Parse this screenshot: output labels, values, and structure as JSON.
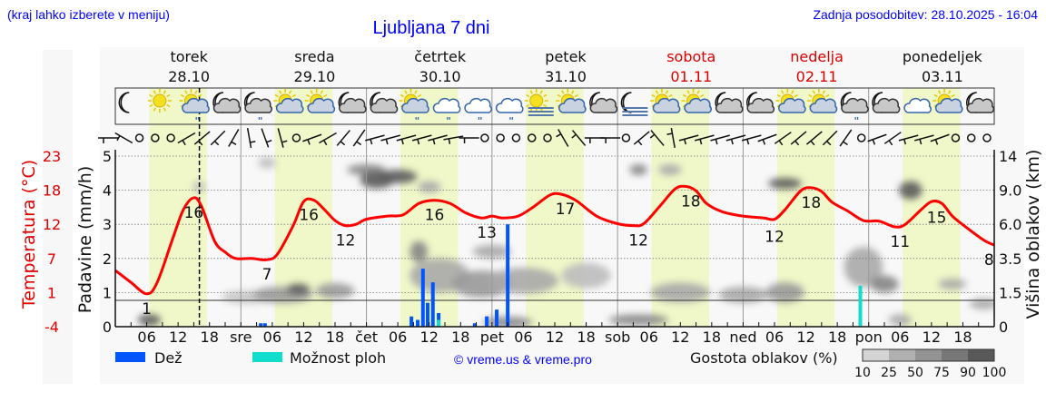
{
  "header": {
    "location_hint": "(kraj lahko izberete v meniju)",
    "title": "Ljubljana 7 dni",
    "updated": "Zadnja posodobitev: 28.10.2025 - 16:04"
  },
  "days": [
    {
      "name": "torek",
      "date": "28.10",
      "weekend": false,
      "axis_label": ""
    },
    {
      "name": "sreda",
      "date": "29.10",
      "weekend": false,
      "axis_label": "sre"
    },
    {
      "name": "četrtek",
      "date": "30.10",
      "weekend": false,
      "axis_label": "čet"
    },
    {
      "name": "petek",
      "date": "31.10",
      "weekend": false,
      "axis_label": "pet"
    },
    {
      "name": "sobota",
      "date": "01.11",
      "weekend": true,
      "axis_label": "sob"
    },
    {
      "name": "nedelja",
      "date": "02.11",
      "weekend": true,
      "axis_label": "ned"
    },
    {
      "name": "ponedeljek",
      "date": "03.11",
      "weekend": false,
      "axis_label": "pon"
    }
  ],
  "colors": {
    "temperature": "#ff0000",
    "rain": "#0055ff",
    "showers": "#11ddcc",
    "daylight": "#f0f7c8",
    "weekend": "#dd0000",
    "link": "#0000ff"
  },
  "weather_icons": [
    "moon-icon",
    "sun-icon",
    "sun-rain-cloud-icon",
    "moon-cloud-icon",
    "moon-cloud-rain-icon",
    "sun-cloud-icon",
    "sun-cloud-icon",
    "moon-cloud-icon",
    "moon-cloud-icon",
    "sun-cloud-rain-icon",
    "cloud-rain-icon",
    "cloud-rain-icon",
    "cloud-rain-icon",
    "sun-fog-icon",
    "sun-cloud-icon",
    "moon-cloud-icon",
    "moon-fog-icon",
    "sun-cloud-icon",
    "sun-cloud-icon",
    "moon-cloud-icon",
    "moon-cloud-icon",
    "sun-cloud-icon",
    "sun-cloud-icon",
    "moon-cloud-rain-icon",
    "moon-cloud-icon",
    "cloud-icon",
    "sun-cloud-icon",
    "moon-cloud-icon"
  ],
  "wind_dir": [
    270,
    300,
    "calm",
    "calm",
    "calm",
    240,
    230,
    225,
    210,
    170,
    160,
    165,
    "calm",
    250,
    240,
    220,
    215,
    255,
    255,
    255,
    255,
    255,
    260,
    270,
    "calm",
    "calm",
    "calm",
    "calm",
    "calm",
    330,
    320,
    270,
    270,
    "calm",
    230,
    320,
    350,
    255,
    255,
    255,
    255,
    255,
    250,
    235,
    230,
    230,
    225,
    215,
    "calm",
    250,
    235,
    255,
    255,
    250,
    "calm",
    "calm",
    "calm"
  ],
  "legend": {
    "rain": "Dež",
    "showers": "Možnost ploh",
    "copyright": "© vreme.us & vreme.pro",
    "cloud_density": "Gostota oblakov (%)",
    "density_levels": [
      "10",
      "25",
      "50",
      "75",
      "90",
      "100"
    ]
  },
  "chart_data": {
    "type": "line",
    "now_marker": "28.10.2025 16:04",
    "x_ticks": [
      "06",
      "12",
      "18"
    ],
    "daylight_hours": [
      6.5,
      17.5
    ],
    "left_axis_temp": {
      "label": "Temperatura (°C)",
      "ticks": [
        "23",
        "18",
        "12",
        "7",
        "1",
        "-4"
      ]
    },
    "left_axis_precip": {
      "label": "Padavine (mm/h)",
      "ticks": [
        "0",
        "1",
        "2",
        "3",
        "4",
        "5"
      ],
      "ylim": [
        0,
        5
      ]
    },
    "right_axis_cloud": {
      "label": "Višina oblakov (km)",
      "ticks": [
        "0",
        "1.5",
        "3.5",
        "6.0",
        "9.0",
        "14"
      ]
    },
    "temperature": {
      "hours": [
        0,
        3,
        6,
        8,
        11,
        13,
        15,
        16.5,
        19,
        21,
        23,
        26,
        29,
        31,
        34,
        36,
        38,
        40,
        42,
        44,
        46,
        48,
        52,
        55,
        58,
        61,
        64,
        67,
        70,
        72,
        74,
        77,
        80,
        83,
        85,
        88,
        92,
        96,
        99,
        101,
        104,
        107,
        109,
        111,
        113,
        116,
        120,
        124,
        126,
        128,
        131,
        133,
        135,
        137,
        140,
        143,
        146,
        149,
        151,
        154,
        156,
        158,
        160,
        163,
        166,
        168
      ],
      "values": [
        4.9,
        3,
        1.2,
        3,
        10,
        14.5,
        16.4,
        15,
        9.5,
        7.8,
        6.8,
        6.8,
        6.6,
        7.5,
        12,
        15.8,
        16,
        14.5,
        12.8,
        12,
        12.2,
        13,
        13.5,
        13.7,
        15.5,
        16,
        15.5,
        14,
        13.2,
        13.5,
        13.2,
        13.5,
        15,
        16.8,
        17,
        16,
        13.5,
        12.3,
        12,
        12.3,
        15,
        17.8,
        18.2,
        17.5,
        15.5,
        14.2,
        13.5,
        13.2,
        13,
        14.5,
        17.5,
        18,
        17.4,
        15.7,
        14.3,
        12.8,
        12.7,
        11.8,
        12.2,
        14.5,
        15.8,
        15.5,
        13.5,
        11.5,
        9.7,
        8.9
      ]
    },
    "temperature_labels": [
      {
        "hour": 6,
        "text": "1",
        "t": 1.2
      },
      {
        "hour": 15,
        "text": "16",
        "t": 16.4
      },
      {
        "hour": 29,
        "text": "7",
        "t": 6.6
      },
      {
        "hour": 37,
        "text": "16",
        "t": 16
      },
      {
        "hour": 44,
        "text": "12",
        "t": 12
      },
      {
        "hour": 61,
        "text": "16",
        "t": 16
      },
      {
        "hour": 71,
        "text": "13",
        "t": 13.2
      },
      {
        "hour": 86,
        "text": "17",
        "t": 17
      },
      {
        "hour": 100,
        "text": "12",
        "t": 12
      },
      {
        "hour": 110,
        "text": "18",
        "t": 18.2
      },
      {
        "hour": 126,
        "text": "12",
        "t": 12.6
      },
      {
        "hour": 133,
        "text": "18",
        "t": 18
      },
      {
        "hour": 150,
        "text": "11",
        "t": 11.8
      },
      {
        "hour": 157,
        "text": "15",
        "t": 15.6
      },
      {
        "hour": 167,
        "text": "8",
        "t": 8.9
      }
    ],
    "rain": {
      "hours": [
        27.8,
        28.6,
        56.6,
        57.8,
        58.8,
        59.7,
        60.7,
        61.8,
        68.7,
        71,
        72.9,
        75
      ],
      "values": [
        0.1,
        0.1,
        0.3,
        0.2,
        1.7,
        0.7,
        1.3,
        0.4,
        0.1,
        0.3,
        0.5,
        3.0
      ]
    },
    "showers": {
      "hours": [
        61.8,
        142.4
      ],
      "values": [
        0.2,
        1.2
      ]
    },
    "cloud_density": [
      {
        "hour": 6.5,
        "km": 0.3,
        "span_h": 3,
        "span_km": 0.5,
        "pct": 90
      },
      {
        "hour": 16,
        "km": 9.5,
        "span_h": 1,
        "span_km": 1,
        "pct": 25
      },
      {
        "hour": 25,
        "km": 1.3,
        "span_h": 8,
        "span_km": 0.6,
        "pct": 30
      },
      {
        "hour": 32,
        "km": 1.4,
        "span_h": 10,
        "span_km": 0.8,
        "pct": 60
      },
      {
        "hour": 35,
        "km": 1.7,
        "span_h": 3,
        "span_km": 0.6,
        "pct": 90
      },
      {
        "hour": 42,
        "km": 1.6,
        "span_h": 6,
        "span_km": 0.8,
        "pct": 60
      },
      {
        "hour": 29,
        "km": 13,
        "span_h": 2,
        "span_km": 0.4,
        "pct": 25
      },
      {
        "hour": 48,
        "km": 12,
        "span_h": 6,
        "span_km": 1.5,
        "pct": 75
      },
      {
        "hour": 50,
        "km": 10.5,
        "span_h": 5,
        "span_km": 2.5,
        "pct": 90
      },
      {
        "hour": 54,
        "km": 11,
        "span_h": 6,
        "span_km": 2,
        "pct": 90
      },
      {
        "hour": 60,
        "km": 9.5,
        "span_h": 3,
        "span_km": 1.5,
        "pct": 50
      },
      {
        "hour": 58,
        "km": 4,
        "span_h": 2,
        "span_km": 1.5,
        "pct": 75
      },
      {
        "hour": 62,
        "km": 2.5,
        "span_h": 10,
        "span_km": 2,
        "pct": 50
      },
      {
        "hour": 70,
        "km": 2,
        "span_h": 10,
        "span_km": 1.5,
        "pct": 60
      },
      {
        "hour": 72,
        "km": 4,
        "span_h": 6,
        "span_km": 1,
        "pct": 50
      },
      {
        "hour": 78,
        "km": 2.2,
        "span_h": 12,
        "span_km": 1.5,
        "pct": 50
      },
      {
        "hour": 75,
        "km": 0.2,
        "span_h": 8,
        "span_km": 0.3,
        "pct": 75
      },
      {
        "hour": 90,
        "km": 2.5,
        "span_h": 8,
        "span_km": 1.5,
        "pct": 25
      },
      {
        "hour": 100,
        "km": 12,
        "span_h": 2,
        "span_km": 0.5,
        "pct": 75
      },
      {
        "hour": 106,
        "km": 12,
        "span_h": 3,
        "span_km": 0.5,
        "pct": 50
      },
      {
        "hour": 100,
        "km": 0.3,
        "span_h": 10,
        "span_km": 0.4,
        "pct": 75
      },
      {
        "hour": 108,
        "km": 1.5,
        "span_h": 10,
        "span_km": 1,
        "pct": 50
      },
      {
        "hour": 128,
        "km": 10,
        "span_h": 5,
        "span_km": 1.5,
        "pct": 90
      },
      {
        "hour": 120,
        "km": 1.4,
        "span_h": 8,
        "span_km": 0.8,
        "pct": 50
      },
      {
        "hour": 128,
        "km": 1.5,
        "span_h": 6,
        "span_km": 1,
        "pct": 60
      },
      {
        "hour": 143,
        "km": 3,
        "span_h": 6,
        "span_km": 2.5,
        "pct": 50
      },
      {
        "hour": 147,
        "km": 2,
        "span_h": 4,
        "span_km": 1,
        "pct": 75
      },
      {
        "hour": 152,
        "km": 9,
        "span_h": 3,
        "span_km": 2,
        "pct": 90
      },
      {
        "hour": 150,
        "km": 0.3,
        "span_h": 3,
        "span_km": 0.5,
        "pct": 50
      },
      {
        "hour": 160,
        "km": 2,
        "span_h": 4,
        "span_km": 0.5,
        "pct": 50
      },
      {
        "hour": 166,
        "km": 1,
        "span_h": 4,
        "span_km": 0.4,
        "pct": 50
      }
    ]
  }
}
